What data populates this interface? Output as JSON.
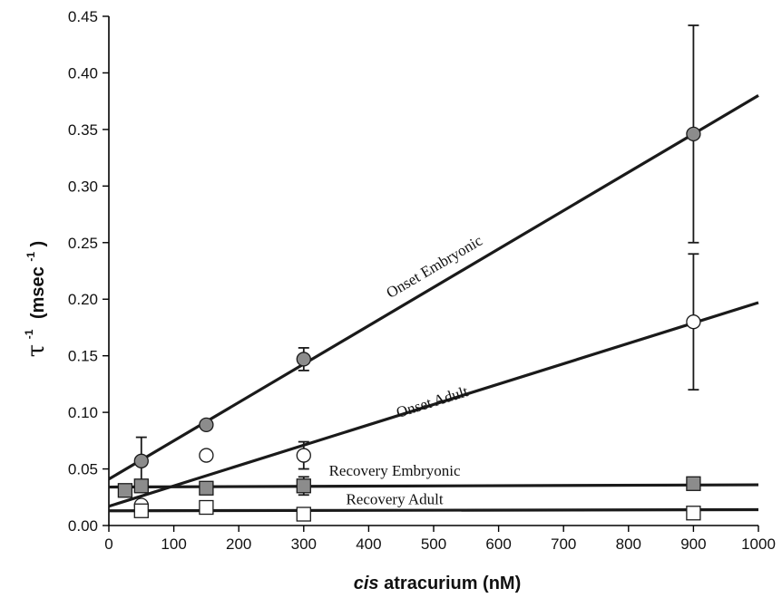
{
  "chart_data": {
    "type": "scatter",
    "xlabel_italic": "cis",
    "xlabel_rest": "atracurium (nM)",
    "ylabel_main": "τ",
    "ylabel_sup": "-1",
    "ylabel_unit_open": "(msec",
    "ylabel_unit_sup": "-1",
    "ylabel_unit_close": ")",
    "xlim": [
      0,
      1000
    ],
    "ylim": [
      0,
      0.45
    ],
    "x_ticks": [
      0,
      100,
      200,
      300,
      400,
      500,
      600,
      700,
      800,
      900,
      1000
    ],
    "x_tick_labels": [
      "0",
      "100",
      "200",
      "300",
      "400",
      "500",
      "600",
      "700",
      "800",
      "900",
      "1000"
    ],
    "y_ticks": [
      0,
      0.05,
      0.1,
      0.15,
      0.2,
      0.25,
      0.3,
      0.35,
      0.4,
      0.45
    ],
    "y_tick_labels": [
      "0.00",
      "0.05",
      "0.10",
      "0.15",
      "0.20",
      "0.25",
      "0.30",
      "0.35",
      "0.40",
      "0.45"
    ],
    "grid": false,
    "series": [
      {
        "name": "Onset Embryonic",
        "marker": "circle",
        "fill": "#8c8c8c",
        "points": [
          {
            "x": 50,
            "y": 0.057,
            "err": 0.021
          },
          {
            "x": 150,
            "y": 0.089,
            "err": 0.0
          },
          {
            "x": 300,
            "y": 0.147,
            "err": 0.01
          },
          {
            "x": 900,
            "y": 0.346,
            "err": 0.096
          }
        ],
        "fit": {
          "x0": 0,
          "y0": 0.041,
          "x1": 1000,
          "y1": 0.38
        },
        "label_x": 505,
        "label_y": 0.225,
        "label_rotation_data": true
      },
      {
        "name": "Onset Adult",
        "marker": "circle",
        "fill": "#ffffff",
        "points": [
          {
            "x": 50,
            "y": 0.018,
            "err": 0.0
          },
          {
            "x": 150,
            "y": 0.062,
            "err": 0.0
          },
          {
            "x": 300,
            "y": 0.062,
            "err": 0.012
          },
          {
            "x": 900,
            "y": 0.18,
            "err": 0.06
          }
        ],
        "fit": {
          "x0": 0,
          "y0": 0.017,
          "x1": 1000,
          "y1": 0.197
        },
        "label_x": 500,
        "label_y": 0.105,
        "label_rotation_data": true
      },
      {
        "name": "Recovery Embryonic",
        "marker": "square",
        "fill": "#8c8c8c",
        "points": [
          {
            "x": 25,
            "y": 0.031,
            "err": 0.0
          },
          {
            "x": 50,
            "y": 0.035,
            "err": 0.0
          },
          {
            "x": 150,
            "y": 0.033,
            "err": 0.0
          },
          {
            "x": 300,
            "y": 0.035,
            "err": 0.008
          },
          {
            "x": 900,
            "y": 0.037,
            "err": 0.0
          }
        ],
        "fit": {
          "x0": 0,
          "y0": 0.034,
          "x1": 1000,
          "y1": 0.036
        },
        "label_x": 440,
        "label_y": 0.044,
        "label_rotation_data": false
      },
      {
        "name": "Recovery Adult",
        "marker": "square",
        "fill": "#ffffff",
        "points": [
          {
            "x": 50,
            "y": 0.013,
            "err": 0.0
          },
          {
            "x": 150,
            "y": 0.016,
            "err": 0.0
          },
          {
            "x": 300,
            "y": 0.01,
            "err": 0.0
          },
          {
            "x": 900,
            "y": 0.011,
            "err": 0.0
          }
        ],
        "fit": {
          "x0": 0,
          "y0": 0.013,
          "x1": 1000,
          "y1": 0.014
        },
        "label_x": 440,
        "label_y": 0.019,
        "label_rotation_data": false
      }
    ]
  }
}
